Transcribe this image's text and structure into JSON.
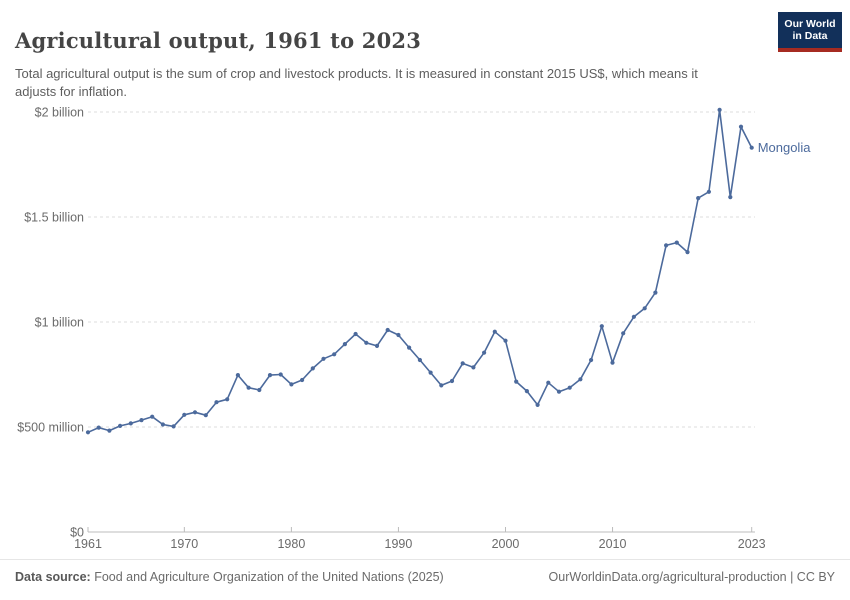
{
  "header": {
    "title": "Agricultural output, 1961 to 2023",
    "subtitle": "Total agricultural output is the sum of crop and livestock products. It is measured in constant 2015 US$, which means it adjusts for inflation."
  },
  "logo": {
    "line1": "Our World",
    "line2": "in Data",
    "bg_color": "#12305a",
    "bar_color": "#a62b21"
  },
  "chart_data": {
    "type": "line",
    "title": "Agricultural output, 1961 to 2023",
    "unit": "constant 2015 US$, millions",
    "xlabel": "",
    "ylabel": "",
    "xlim": [
      1961,
      2023
    ],
    "ylim": [
      0,
      2000
    ],
    "grid": true,
    "legend_position": "end-of-line label",
    "x_ticks": [
      1961,
      1970,
      1980,
      1990,
      2000,
      2010,
      2023
    ],
    "y_ticks": [
      {
        "value": 0,
        "label": "$0"
      },
      {
        "value": 500,
        "label": "$500 million"
      },
      {
        "value": 1000,
        "label": "$1 billion"
      },
      {
        "value": 1500,
        "label": "$1.5 billion"
      },
      {
        "value": 2000,
        "label": "$2 billion"
      }
    ],
    "series": [
      {
        "name": "Mongolia",
        "color": "#4c6a9c",
        "x": [
          1961,
          1962,
          1963,
          1964,
          1965,
          1966,
          1967,
          1968,
          1969,
          1970,
          1971,
          1972,
          1973,
          1974,
          1975,
          1976,
          1977,
          1978,
          1979,
          1980,
          1981,
          1982,
          1983,
          1984,
          1985,
          1986,
          1987,
          1988,
          1989,
          1990,
          1991,
          1992,
          1993,
          1994,
          1995,
          1996,
          1997,
          1998,
          1999,
          2000,
          2001,
          2002,
          2003,
          2004,
          2005,
          2006,
          2007,
          2008,
          2009,
          2010,
          2011,
          2012,
          2013,
          2014,
          2015,
          2016,
          2017,
          2018,
          2019,
          2020,
          2021,
          2022,
          2023
        ],
        "values": [
          475,
          497,
          483,
          505,
          517,
          533,
          549,
          512,
          503,
          558,
          570,
          556,
          618,
          632,
          747,
          687,
          676,
          747,
          750,
          703,
          724,
          779,
          825,
          846,
          895,
          943,
          901,
          886,
          962,
          938,
          878,
          819,
          759,
          698,
          719,
          803,
          784,
          854,
          954,
          911,
          716,
          671,
          605,
          711,
          668,
          687,
          727,
          819,
          980,
          806,
          946,
          1025,
          1065,
          1140,
          1365,
          1378,
          1333,
          1590,
          1620,
          2010,
          1595,
          1930,
          1830
        ]
      }
    ]
  },
  "footer": {
    "source_prefix": "Data source:",
    "source_text": " Food and Agriculture Organization of the United Nations (2025)",
    "right_text": "OurWorldinData.org/agricultural-production | CC BY"
  }
}
